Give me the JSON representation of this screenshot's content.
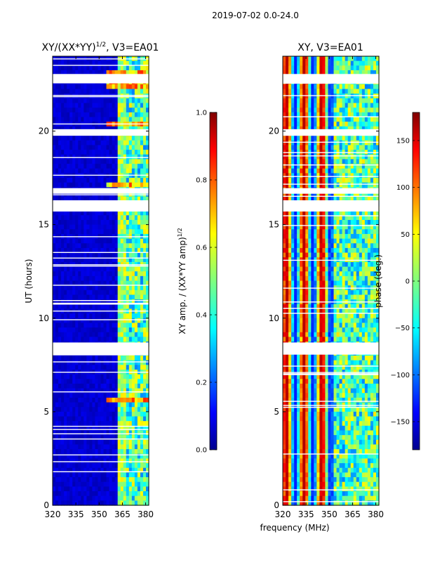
{
  "figure_title": "2019-07-02 0.0-24.0",
  "shared_xlabel": "frequency (MHz)",
  "chart_data": [
    {
      "type": "heatmap",
      "title_base": "XY/(XX*YY)",
      "title_exp": "1/2",
      "title_suffix": ", V3=EA01",
      "ylabel": "UT (hours)",
      "xlim": [
        320,
        382
      ],
      "ylim": [
        0,
        24
      ],
      "xticks": [
        320,
        335,
        350,
        365,
        380
      ],
      "yticks": [
        0,
        5,
        10,
        15,
        20
      ],
      "colorbar": {
        "label_base": "XY amp. / (XX*YY amp)",
        "label_exp": "1/2",
        "range": [
          0.0,
          1.0
        ],
        "ticks": [
          "0.0",
          "0.2",
          "0.4",
          "0.6",
          "0.8",
          "1.0"
        ],
        "colormap": "jet"
      },
      "data_gaps_hours": [
        [
          8.05,
          8.7
        ],
        [
          15.7,
          16.3
        ],
        [
          16.65,
          16.95
        ],
        [
          19.75,
          20.1
        ],
        [
          22.55,
          23.05
        ]
      ]
    },
    {
      "type": "heatmap",
      "title": "XY, V3=EA01",
      "ylabel": "",
      "xlim": [
        320,
        382
      ],
      "ylim": [
        0,
        24
      ],
      "xticks": [
        320,
        335,
        350,
        365,
        380
      ],
      "yticks": [
        0,
        5,
        10,
        15,
        20
      ],
      "colorbar": {
        "label": "phase (deg.)",
        "range": [
          -180,
          180
        ],
        "ticks": [
          "−150",
          "−100",
          "−50",
          "0",
          "50",
          "100",
          "150"
        ],
        "colormap": "jet"
      },
      "data_gaps_hours": [
        [
          8.05,
          8.7
        ],
        [
          15.7,
          16.3
        ],
        [
          16.65,
          16.95
        ],
        [
          19.75,
          20.1
        ],
        [
          22.55,
          23.05
        ]
      ]
    }
  ]
}
